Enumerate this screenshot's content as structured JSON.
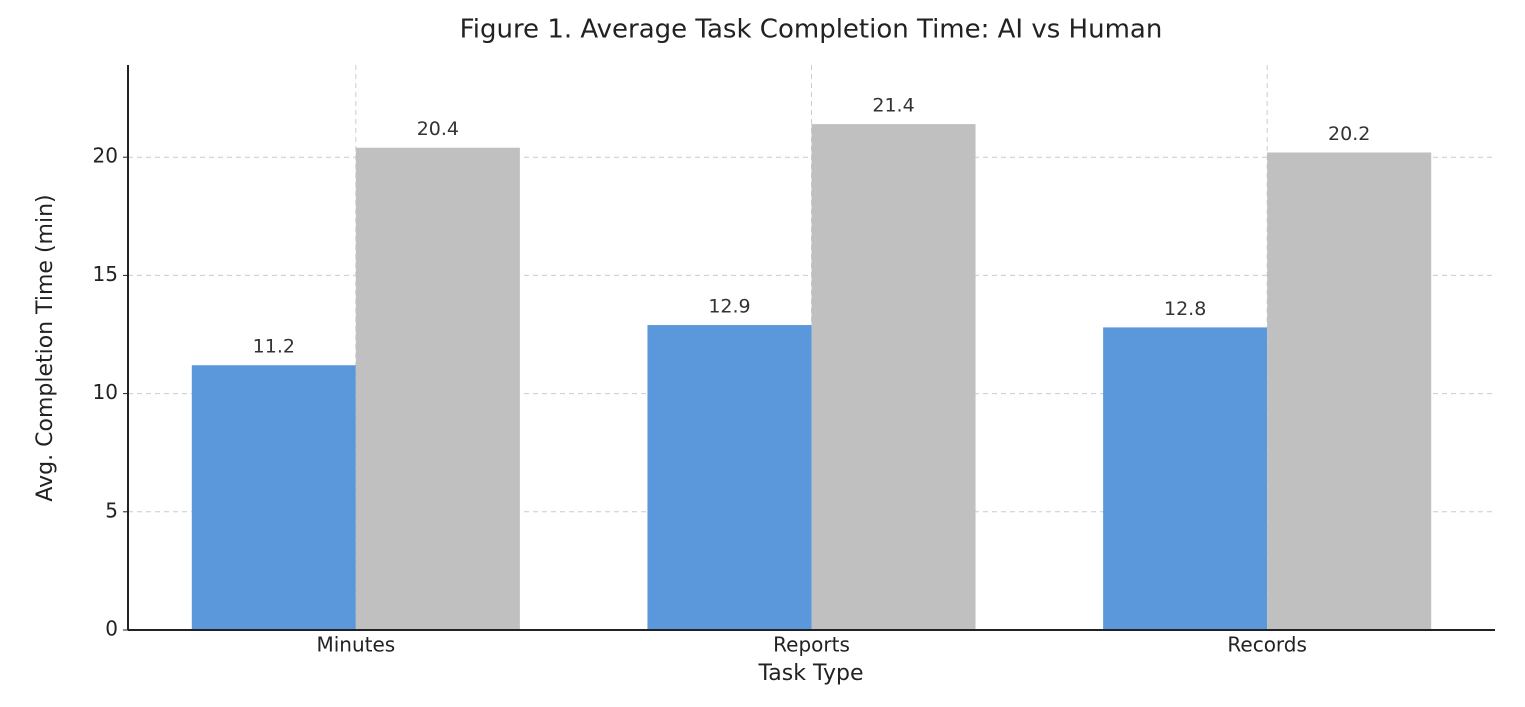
{
  "chart_data": {
    "type": "bar",
    "title": "Figure 1. Average Task Completion Time: AI vs Human",
    "x_label": "Task Type",
    "y_label": "Avg. Completion Time (min)",
    "categories": [
      "Minutes",
      "Reports",
      "Records"
    ],
    "series": [
      {
        "color": "#5b97db",
        "values": [
          11.2,
          12.9,
          12.8
        ]
      },
      {
        "color": "#c0c0c0",
        "values": [
          20.4,
          21.4,
          20.2
        ]
      }
    ],
    "ylim": [
      0,
      23.9
    ],
    "yticks": [
      0,
      5,
      10,
      15,
      20
    ],
    "grid": true
  }
}
